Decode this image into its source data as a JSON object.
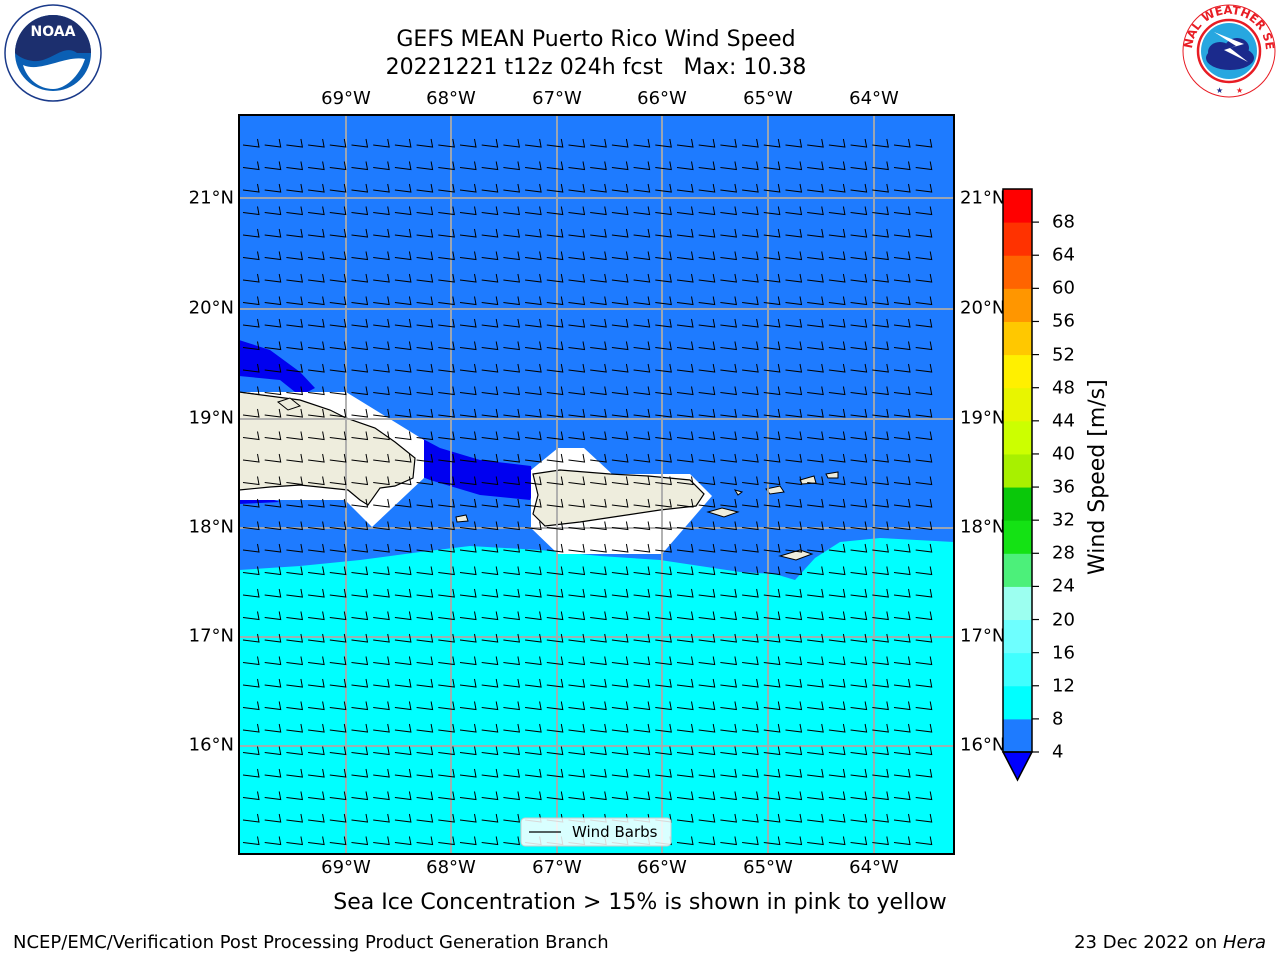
{
  "header": {
    "title_line1": "GEFS MEAN Puerto Rico Wind Speed",
    "title_line2": "20221221 t12z 024h fcst   Max: 10.38"
  },
  "logos": {
    "noaa_text": "NOAA",
    "noaa_ring_text": "NATIONAL OCEANIC AND ATMOSPHERIC ADMINISTRATION · U.S. DEPARTMENT OF COMMERCE",
    "nws_ring_text": "NATIONAL WEATHER SERVICE"
  },
  "map": {
    "lon_labels": [
      "69°W",
      "68°W",
      "67°W",
      "66°W",
      "65°W",
      "64°W"
    ],
    "lat_labels": [
      "21°N",
      "20°N",
      "19°N",
      "18°N",
      "17°N",
      "16°N"
    ],
    "lon_extent": [
      -70.0,
      -63.25
    ],
    "lat_extent": [
      15.0,
      21.75
    ],
    "legend_label": "Wind Barbs",
    "regions": {
      "north_sea_color": "#1e7bff",
      "south_sea_color": "#00ffff",
      "dark_band_color": "#0000f0",
      "land_color": "#eeeddd",
      "masked_color": "#ffffff"
    }
  },
  "colorbar": {
    "label": "Wind Speed [m/s]",
    "ticks": [
      "4",
      "8",
      "12",
      "16",
      "20",
      "24",
      "28",
      "32",
      "36",
      "40",
      "44",
      "48",
      "52",
      "56",
      "60",
      "64",
      "68"
    ],
    "under_color": "#0000ff",
    "colors": [
      "#1e7bff",
      "#00ffff",
      "#40ffff",
      "#6effff",
      "#9cfff0",
      "#4cf07a",
      "#14e214",
      "#0ac80a",
      "#a8f000",
      "#ccff00",
      "#e8f500",
      "#fff000",
      "#ffc800",
      "#ff9600",
      "#ff6400",
      "#ff3200",
      "#ff0000"
    ]
  },
  "caption": "Sea Ice Concentration > 15% is shown in pink to yellow",
  "footer": {
    "left": "NCEP/EMC/Verification Post Processing Product Generation Branch",
    "right_prefix": "23 Dec 2022 on ",
    "right_machine": "Hera"
  }
}
